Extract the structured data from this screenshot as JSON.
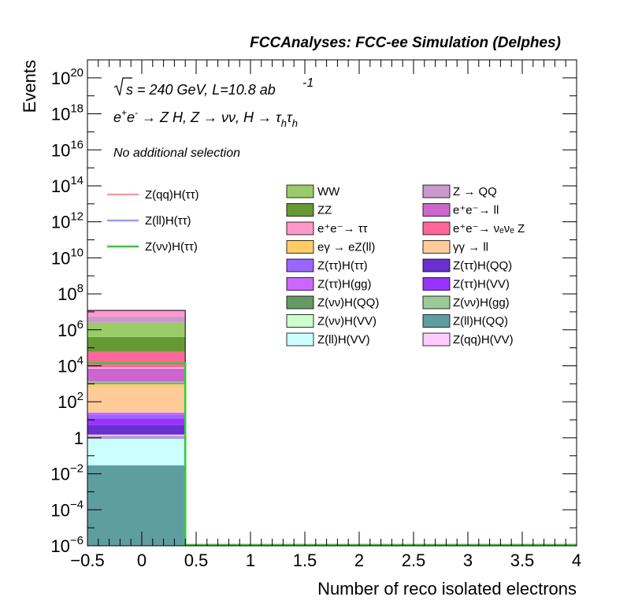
{
  "chart_data": {
    "type": "bar",
    "title": "FCCAnalyses: FCC-ee Simulation (Delphes)",
    "xlabel": "Number of reco isolated electrons",
    "ylabel": "Events",
    "xlim": [
      -0.5,
      4
    ],
    "ylim": [
      1e-06,
      1e+21
    ],
    "log_y": true,
    "grid": false,
    "x_tick_labels": [
      "−0.5",
      "0",
      "0.5",
      "1",
      "1.5",
      "2",
      "2.5",
      "3",
      "3.5",
      "4"
    ],
    "x_ticks": [
      -0.5,
      0,
      0.5,
      1,
      1.5,
      2,
      2.5,
      3,
      3.5,
      4
    ],
    "y_tick_labels": [
      {
        "base": "10",
        "exp": "−6",
        "value": 1e-06
      },
      {
        "base": "10",
        "exp": "−4",
        "value": 0.0001
      },
      {
        "base": "10",
        "exp": "−2",
        "value": 0.01
      },
      {
        "base": "1",
        "exp": "",
        "value": 1
      },
      {
        "base": "10",
        "exp": "2",
        "value": 100.0
      },
      {
        "base": "10",
        "exp": "4",
        "value": 10000.0
      },
      {
        "base": "10",
        "exp": "6",
        "value": 1000000.0
      },
      {
        "base": "10",
        "exp": "8",
        "value": 100000000.0
      },
      {
        "base": "10",
        "exp": "10",
        "value": 10000000000.0
      },
      {
        "base": "10",
        "exp": "12",
        "value": 1000000000000.0
      },
      {
        "base": "10",
        "exp": "14",
        "value": 100000000000000.0
      },
      {
        "base": "10",
        "exp": "16",
        "value": 1e+16
      },
      {
        "base": "10",
        "exp": "18",
        "value": 1e+18
      },
      {
        "base": "10",
        "exp": "20",
        "value": 1e+20
      }
    ],
    "annotations": {
      "energy": "s = 240 GeV, L=10.8 ab",
      "energy_exp": "-1",
      "process_part1": "e",
      "process_part2": "e",
      "process_part3": " → Z H, Z  → νν, H  → τ",
      "process_sub": "h",
      "selection": "No additional selection"
    },
    "bin": [
      -0.5,
      0.4
    ],
    "stack": [
      {
        "name": "Z(ll)H(QQ)",
        "color": "#5f9ea0",
        "low": 1e-06,
        "high": 0.03
      },
      {
        "name": "Z(ll)H(VV)",
        "color": "#ccffff",
        "low": 0.03,
        "high": 1.5
      },
      {
        "name": "Z(ττ)H(QQ)",
        "color": "#6a2fcf",
        "low": 1.5,
        "high": 5
      },
      {
        "name": "Z(ττ)H(VV)",
        "color": "#9933ff",
        "low": 5,
        "high": 12
      },
      {
        "name": "Z(ττ)H(ττ)",
        "color": "#9966ff",
        "low": 12,
        "high": 20
      },
      {
        "name": "Z(ττ)H(gg)",
        "color": "#cc66ff",
        "low": 20,
        "high": 25
      },
      {
        "name": "γγ → ll",
        "color": "#ffcc99",
        "low": 25,
        "high": 600
      },
      {
        "name": "eγ → eZ(ll)",
        "color": "#ffcc66",
        "low": 600,
        "high": 900
      },
      {
        "name": "Z(νν)H(gg)",
        "color": "#99cc99",
        "low": 900,
        "high": 1000
      },
      {
        "name": "Z(νν)H(QQ)",
        "color": "#669966",
        "low": 1000,
        "high": 1200
      },
      {
        "name": "Z(νν)H(VV)",
        "color": "#ccffcc",
        "low": 1200,
        "high": 1300
      },
      {
        "name": "e⁺e⁻→ ll",
        "color": "#cc66cc",
        "low": 1300,
        "high": 7000
      },
      {
        "name": "Z(qq)H(VV)",
        "color": "#ffccff",
        "low": 7000,
        "high": 8000
      },
      {
        "name": "e⁺e⁻→ νeνe Z",
        "color": "#ff6699",
        "low": 8000,
        "high": 60000
      },
      {
        "name": "ZZ",
        "color": "#669933",
        "low": 60000,
        "high": 400000
      },
      {
        "name": "WW",
        "color": "#99cc66",
        "low": 400000,
        "high": 2500000
      },
      {
        "name": "Z → QQ",
        "color": "#cc99cc",
        "low": 2500000,
        "high": 5500000
      },
      {
        "name": "e⁺e⁻→ ττ",
        "color": "#ff99cc",
        "low": 5500000,
        "high": 12000000
      }
    ],
    "signals": [
      {
        "name": "Z(qq)H(ττ)",
        "color": "#ff9999",
        "value": 1.2
      },
      {
        "name": "Z(ll)H(ττ)",
        "color": "#9999ff",
        "value": 1.0
      },
      {
        "name": "Z(νν)H(ττ)",
        "color": "#33cc33",
        "value": 14000
      }
    ],
    "legend_signals": [
      "Z(qq)H(ττ)",
      "Z(ll)H(ττ)",
      "Z(νν)H(ττ)"
    ],
    "legend_bkg_col1": [
      {
        "label": "WW",
        "color": "#99cc66"
      },
      {
        "label": "ZZ",
        "color": "#669933"
      },
      {
        "label": "e⁺e⁻→ ττ",
        "color": "#ff99cc"
      },
      {
        "label": "eγ → eZ(ll)",
        "color": "#ffcc66"
      },
      {
        "label": "Z(ττ)H(ττ)",
        "color": "#9966ff"
      },
      {
        "label": "Z(ττ)H(gg)",
        "color": "#cc66ff"
      },
      {
        "label": "Z(νν)H(QQ)",
        "color": "#669966"
      },
      {
        "label": "Z(νν)H(VV)",
        "color": "#ccffcc"
      },
      {
        "label": "Z(ll)H(VV)",
        "color": "#ccffff"
      }
    ],
    "legend_bkg_col2": [
      {
        "label": "Z → QQ",
        "color": "#cc99cc"
      },
      {
        "label": "e⁺e⁻→ ll",
        "color": "#cc66cc"
      },
      {
        "label": "e⁺e⁻→ νₑνₑ Z",
        "color": "#ff6699"
      },
      {
        "label": "γγ → ll",
        "color": "#ffcc99"
      },
      {
        "label": "Z(ττ)H(QQ)",
        "color": "#6a2fcf"
      },
      {
        "label": "Z(ττ)H(VV)",
        "color": "#9933ff"
      },
      {
        "label": "Z(νν)H(gg)",
        "color": "#99cc99"
      },
      {
        "label": "Z(ll)H(QQ)",
        "color": "#5f9ea0"
      },
      {
        "label": "Z(qq)H(VV)",
        "color": "#ffccff"
      }
    ]
  }
}
